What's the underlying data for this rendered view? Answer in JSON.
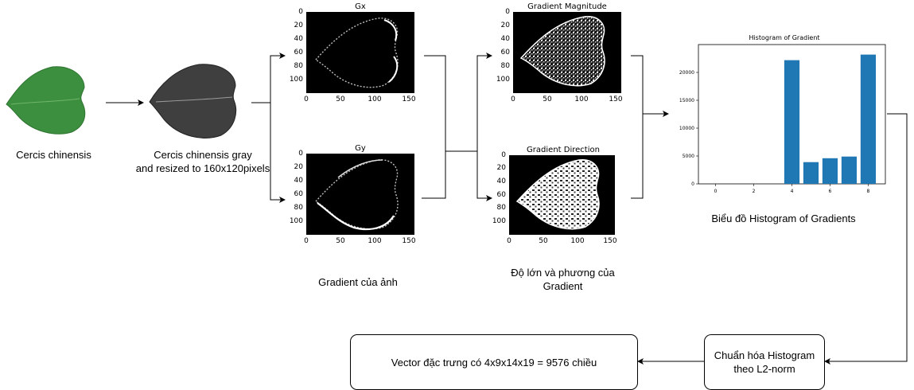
{
  "leaf_label": "Cercis chinensis",
  "gray_label_line1": "Cercis chinensis gray",
  "gray_label_line2": "and resized to 160x120pixels",
  "gx": {
    "title": "Gx",
    "y_ticks": [
      "0",
      "20",
      "40",
      "60",
      "80",
      "100"
    ],
    "x_ticks": [
      "0",
      "50",
      "100",
      "150"
    ]
  },
  "gy": {
    "title": "Gy",
    "y_ticks": [
      "0",
      "20",
      "40",
      "60",
      "80",
      "100"
    ],
    "x_ticks": [
      "0",
      "50",
      "100",
      "150"
    ]
  },
  "magnitude": {
    "title": "Gradient Magnitude",
    "y_ticks": [
      "0",
      "20",
      "40",
      "60",
      "80",
      "100"
    ],
    "x_ticks": [
      "0",
      "50",
      "100",
      "150"
    ]
  },
  "direction": {
    "title": "Gradient Direction",
    "y_ticks": [
      "0",
      "20",
      "40",
      "60",
      "80",
      "100"
    ],
    "x_ticks": [
      "0",
      "50",
      "100",
      "150"
    ]
  },
  "gradient_label": "Gradient của ảnh",
  "mag_dir_label_line1": "Độ lớn và phương của",
  "mag_dir_label_line2": "Gradient",
  "histogram_caption": "Biểu đồ Histogram of Gradients",
  "normalize_line1": "Chuẩn hóa Histogram",
  "normalize_line2": "theo L2-norm",
  "vector_label": "Vector đặc trưng có 4x9x14x19 = 9576 chiều",
  "colors": {
    "bar": "#1f77b4",
    "leaf_green": "#3c8f3e",
    "arrow": "#000000"
  },
  "chart_data": {
    "type": "bar",
    "title": "Histogram of Gradient",
    "x": [
      4,
      5,
      6,
      7,
      8
    ],
    "values": [
      22200,
      3900,
      4600,
      4900,
      23200
    ],
    "x_ticks": [
      "0",
      "2",
      "4",
      "6",
      "8"
    ],
    "y_ticks": [
      "0",
      "5000",
      "10000",
      "15000",
      "20000"
    ],
    "xlim": [
      -0.9,
      8.9
    ],
    "ylim": [
      0,
      25000
    ],
    "grid": false
  }
}
